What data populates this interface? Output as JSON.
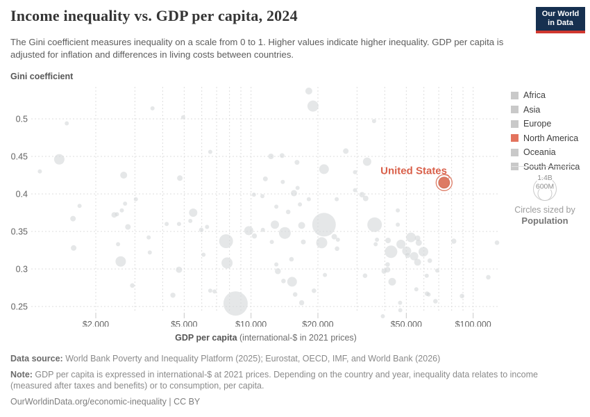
{
  "header": {
    "title": "Income inequality vs. GDP per capita, 2024",
    "subtitle": "The Gini coefficient measures inequality on a scale from 0 to 1. Higher values indicate higher inequality. GDP per capita is adjusted for inflation and differences in living costs between countries.",
    "logo_line1": "Our World",
    "logo_line2": "in Data",
    "logo_bg": "#163050",
    "logo_accent": "#d0382f"
  },
  "legend": {
    "items": [
      {
        "label": "Africa",
        "color": "#c9c9c9"
      },
      {
        "label": "Asia",
        "color": "#c9c9c9"
      },
      {
        "label": "Europe",
        "color": "#c9c9c9"
      },
      {
        "label": "North America",
        "color": "#e3735d"
      },
      {
        "label": "Oceania",
        "color": "#c9c9c9"
      },
      {
        "label": "South America",
        "color": "#c9c9c9"
      }
    ],
    "size_legend": {
      "outer_label": "1.4B",
      "inner_label": "600M",
      "caption_line1": "Circles sized by",
      "caption_line2": "Population"
    }
  },
  "chart_data": {
    "type": "scatter",
    "title": "Income inequality vs. GDP per capita, 2024",
    "xlabel_bold": "GDP per capita",
    "xlabel_rest": " (international-$ in 2021 prices)",
    "ylabel": "Gini coefficient",
    "x_scale": "log",
    "x_range": [
      1030,
      130000
    ],
    "y_range": [
      0.235,
      0.543
    ],
    "x_ticks": [
      2000,
      5000,
      10000,
      20000,
      50000,
      100000
    ],
    "x_tick_labels": [
      "$2,000",
      "$5,000",
      "$10,000",
      "$20,000",
      "$50,000",
      "$100,000"
    ],
    "x_gridlines": [
      2000,
      3000,
      4000,
      5000,
      6000,
      7000,
      8000,
      9000,
      10000,
      20000,
      30000,
      40000,
      50000,
      60000,
      70000,
      80000,
      90000,
      100000
    ],
    "y_ticks": [
      0.25,
      0.3,
      0.35,
      0.4,
      0.45,
      0.5
    ],
    "grid": true,
    "point_color": "#d5d8da",
    "sized_by": "Population",
    "highlight": {
      "label": "United States",
      "gdp": 74000,
      "gini": 0.415,
      "r": 8,
      "color": "#dd7a63",
      "label_color": "#d9604a"
    },
    "points": [
      [
        3600,
        0.514,
        3
      ],
      [
        4950,
        0.502,
        3
      ],
      [
        1480,
        0.494,
        3
      ],
      [
        35800,
        0.497,
        3
      ],
      [
        18200,
        0.537,
        5
      ],
      [
        19000,
        0.517,
        8
      ],
      [
        1370,
        0.446,
        7.5
      ],
      [
        1120,
        0.43,
        3
      ],
      [
        2670,
        0.425,
        5
      ],
      [
        4780,
        0.421,
        4
      ],
      [
        3030,
        0.393,
        3
      ],
      [
        6550,
        0.456,
        3
      ],
      [
        12300,
        0.45,
        4
      ],
      [
        13800,
        0.451,
        3.5
      ],
      [
        16100,
        0.442,
        3.5
      ],
      [
        21300,
        0.433,
        7
      ],
      [
        26700,
        0.457,
        4
      ],
      [
        11600,
        0.42,
        3.5
      ],
      [
        13900,
        0.416,
        3
      ],
      [
        16200,
        0.408,
        3
      ],
      [
        15600,
        0.401,
        4.5
      ],
      [
        10300,
        0.399,
        3
      ],
      [
        11250,
        0.397,
        3
      ],
      [
        18200,
        0.393,
        3
      ],
      [
        24300,
        0.393,
        3
      ],
      [
        33300,
        0.443,
        6
      ],
      [
        29400,
        0.429,
        3
      ],
      [
        29400,
        0.405,
        3
      ],
      [
        31600,
        0.399,
        4
      ],
      [
        32800,
        0.394,
        4
      ],
      [
        1690,
        0.384,
        3
      ],
      [
        2710,
        0.387,
        3
      ],
      [
        2620,
        0.378,
        3
      ],
      [
        2420,
        0.372,
        4
      ],
      [
        2490,
        0.373,
        3
      ],
      [
        1580,
        0.367,
        4
      ],
      [
        5490,
        0.375,
        6
      ],
      [
        5330,
        0.364,
        3
      ],
      [
        4170,
        0.36,
        3
      ],
      [
        4740,
        0.36,
        3
      ],
      [
        2790,
        0.356,
        4
      ],
      [
        3460,
        0.342,
        3
      ],
      [
        2520,
        0.333,
        3
      ],
      [
        1590,
        0.328,
        4
      ],
      [
        3500,
        0.322,
        3
      ],
      [
        2590,
        0.31,
        7.5
      ],
      [
        4740,
        0.299,
        4.5
      ],
      [
        2920,
        0.278,
        3.3
      ],
      [
        4450,
        0.265,
        3.7
      ],
      [
        13000,
        0.383,
        3
      ],
      [
        14700,
        0.376,
        3.3
      ],
      [
        16600,
        0.386,
        3
      ],
      [
        21300,
        0.359,
        17
      ],
      [
        12800,
        0.359,
        6
      ],
      [
        14200,
        0.348,
        8.5
      ],
      [
        16900,
        0.358,
        5
      ],
      [
        11300,
        0.352,
        3
      ],
      [
        9770,
        0.351,
        6.5
      ],
      [
        10350,
        0.344,
        3.7
      ],
      [
        5970,
        0.352,
        3.3
      ],
      [
        6340,
        0.356,
        3
      ],
      [
        12400,
        0.336,
        3
      ],
      [
        7720,
        0.337,
        10
      ],
      [
        17200,
        0.336,
        3.5
      ],
      [
        6110,
        0.319,
        3
      ],
      [
        7800,
        0.308,
        8
      ],
      [
        20800,
        0.335,
        8
      ],
      [
        23700,
        0.343,
        4
      ],
      [
        24600,
        0.339,
        3
      ],
      [
        24400,
        0.327,
        3.3
      ],
      [
        15200,
        0.313,
        3.3
      ],
      [
        13000,
        0.306,
        3
      ],
      [
        13200,
        0.297,
        4.3
      ],
      [
        14000,
        0.284,
        3.3
      ],
      [
        15300,
        0.283,
        7
      ],
      [
        21500,
        0.292,
        3
      ],
      [
        15800,
        0.266,
        3.3
      ],
      [
        19200,
        0.271,
        3.3
      ],
      [
        16900,
        0.255,
        3.7
      ],
      [
        6550,
        0.271,
        3
      ],
      [
        6850,
        0.27,
        3
      ],
      [
        8520,
        0.254,
        17.5
      ],
      [
        45800,
        0.378,
        3
      ],
      [
        36000,
        0.359,
        10.5
      ],
      [
        45800,
        0.359,
        3
      ],
      [
        36900,
        0.339,
        3
      ],
      [
        36400,
        0.333,
        3
      ],
      [
        41400,
        0.338,
        4
      ],
      [
        47300,
        0.333,
        6.5
      ],
      [
        52500,
        0.342,
        7
      ],
      [
        56200,
        0.341,
        4
      ],
      [
        56900,
        0.335,
        4.5
      ],
      [
        42700,
        0.323,
        9
      ],
      [
        50200,
        0.324,
        6.5
      ],
      [
        50700,
        0.318,
        3.7
      ],
      [
        54200,
        0.317,
        6
      ],
      [
        59700,
        0.323,
        7
      ],
      [
        56200,
        0.309,
        5
      ],
      [
        63800,
        0.311,
        3.3
      ],
      [
        81800,
        0.337,
        3.7
      ],
      [
        128000,
        0.335,
        3.3
      ],
      [
        41200,
        0.306,
        3.3
      ],
      [
        39700,
        0.297,
        3.7
      ],
      [
        41200,
        0.299,
        4
      ],
      [
        68900,
        0.298,
        3
      ],
      [
        32600,
        0.291,
        3.3
      ],
      [
        61800,
        0.291,
        3
      ],
      [
        117000,
        0.289,
        3.3
      ],
      [
        43200,
        0.283,
        5.5
      ],
      [
        55500,
        0.273,
        3
      ],
      [
        62000,
        0.267,
        3.3
      ],
      [
        63000,
        0.266,
        3
      ],
      [
        67600,
        0.257,
        3.3
      ],
      [
        89100,
        0.264,
        3.3
      ],
      [
        46900,
        0.255,
        3
      ],
      [
        47000,
        0.245,
        3
      ],
      [
        39200,
        0.237,
        3
      ]
    ]
  },
  "footer": {
    "data_source_label": "Data source:",
    "data_source_text": " World Bank Poverty and Inequality Platform (2025); Eurostat, OECD, IMF, and World Bank (2026)",
    "note_label": "Note:",
    "note_text": " GDP per capita is expressed in international-$ at 2021 prices. Depending on the country and year, inequality data relates to income (measured after taxes and benefits) or to consumption, per capita.",
    "link": "OurWorldinData.org/economic-inequality | CC BY"
  }
}
